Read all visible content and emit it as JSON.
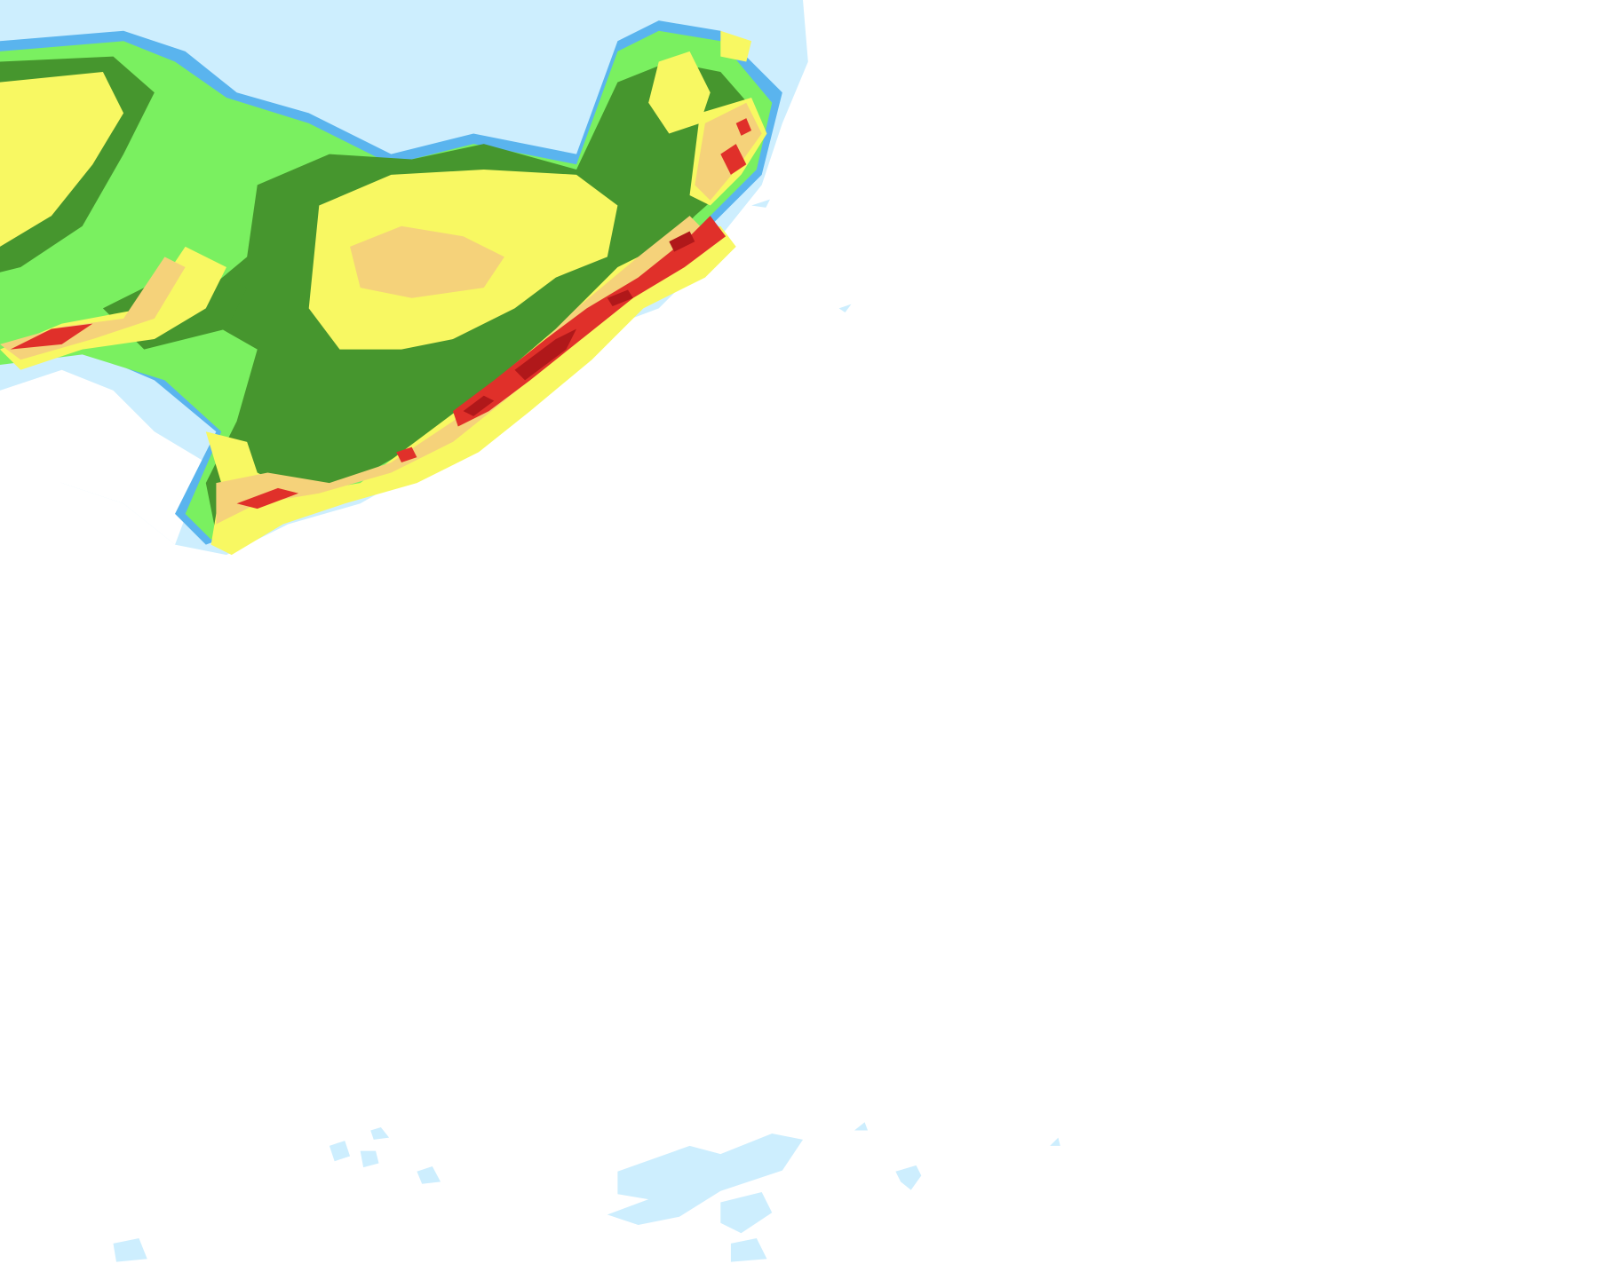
{
  "palette": {
    "background": "#ffffff",
    "level1": "#cdeefe",
    "level2": "#5ab4ee",
    "level3": "#7af060",
    "level4": "#46962e",
    "level5": "#f8f862",
    "level6": "#f5d27a",
    "level7": "#e0302a",
    "level8": "#b0181a"
  }
}
